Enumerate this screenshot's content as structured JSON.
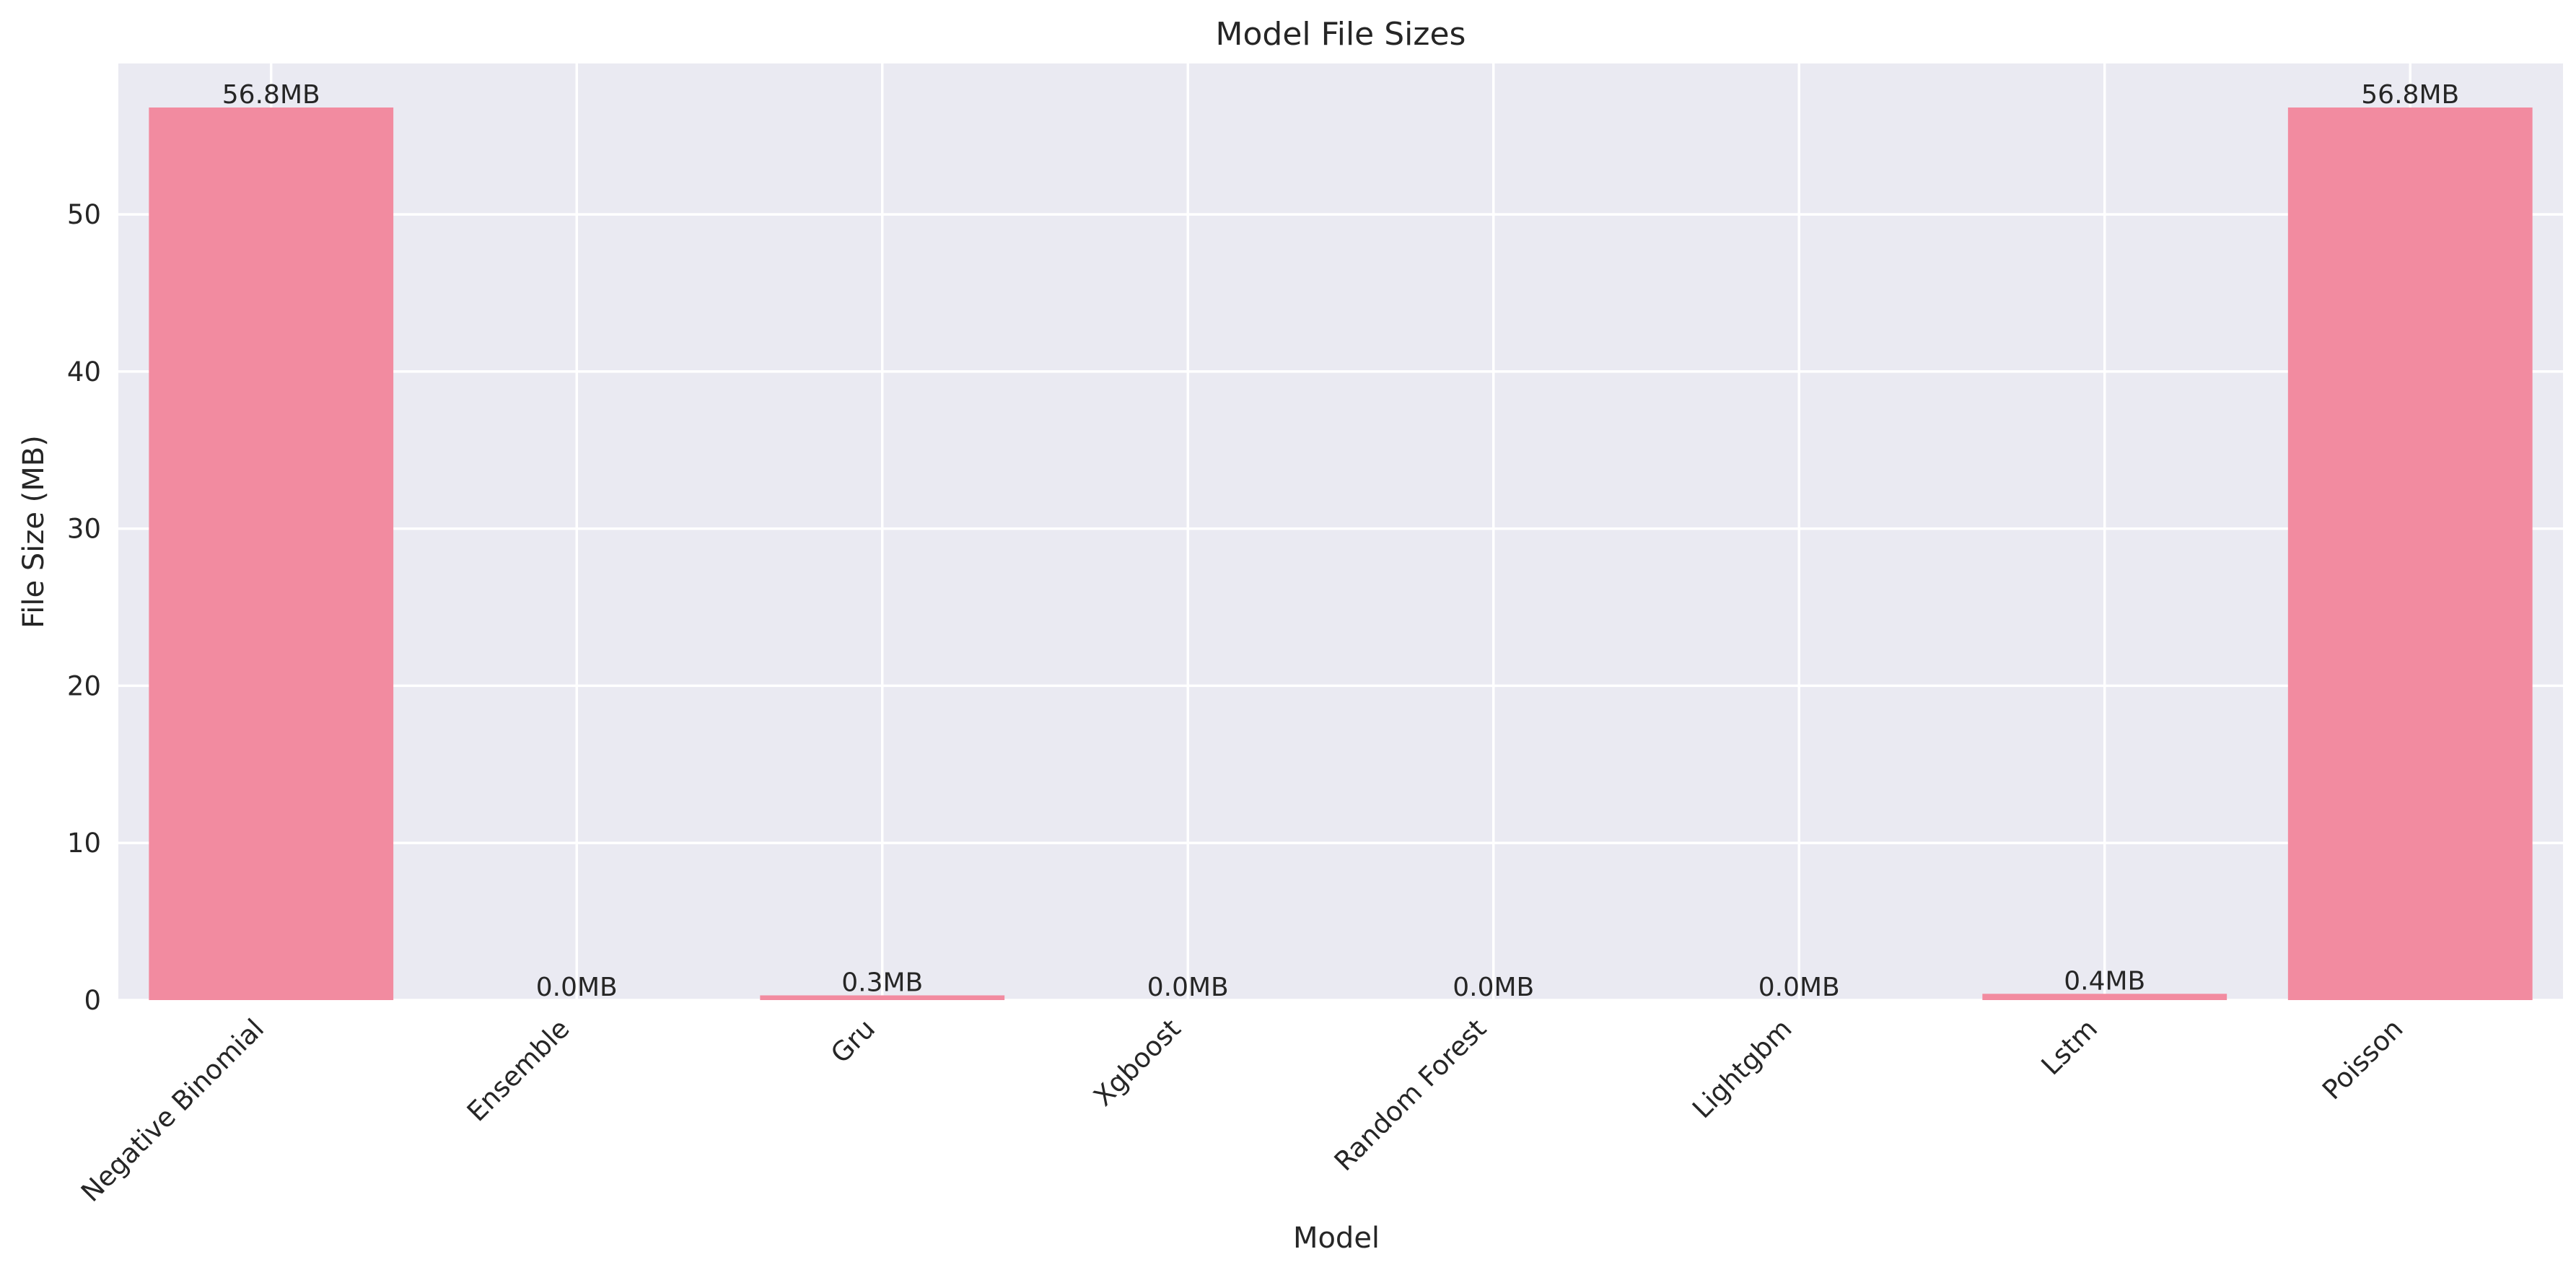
{
  "chart_data": {
    "type": "bar",
    "title": "Model File Sizes",
    "xlabel": "Model",
    "ylabel": "File Size (MB)",
    "categories": [
      "Negative Binomial",
      "Ensemble",
      "Gru",
      "Xgboost",
      "Random Forest",
      "Lightgbm",
      "Lstm",
      "Poisson"
    ],
    "values": [
      56.8,
      0.0,
      0.3,
      0.0,
      0.0,
      0.0,
      0.4,
      56.8
    ],
    "value_labels": [
      "56.8MB",
      "0.0MB",
      "0.3MB",
      "0.0MB",
      "0.0MB",
      "0.0MB",
      "0.4MB",
      "56.8MB"
    ],
    "ylim": [
      0,
      59.6
    ],
    "yticks": [
      0,
      10,
      20,
      30,
      40,
      50
    ],
    "grid": true,
    "legend": false,
    "colors": {
      "bar": "#f28ba0",
      "plot_background": "#eaeaf2",
      "grid": "#ffffff",
      "text": "#262626"
    }
  }
}
